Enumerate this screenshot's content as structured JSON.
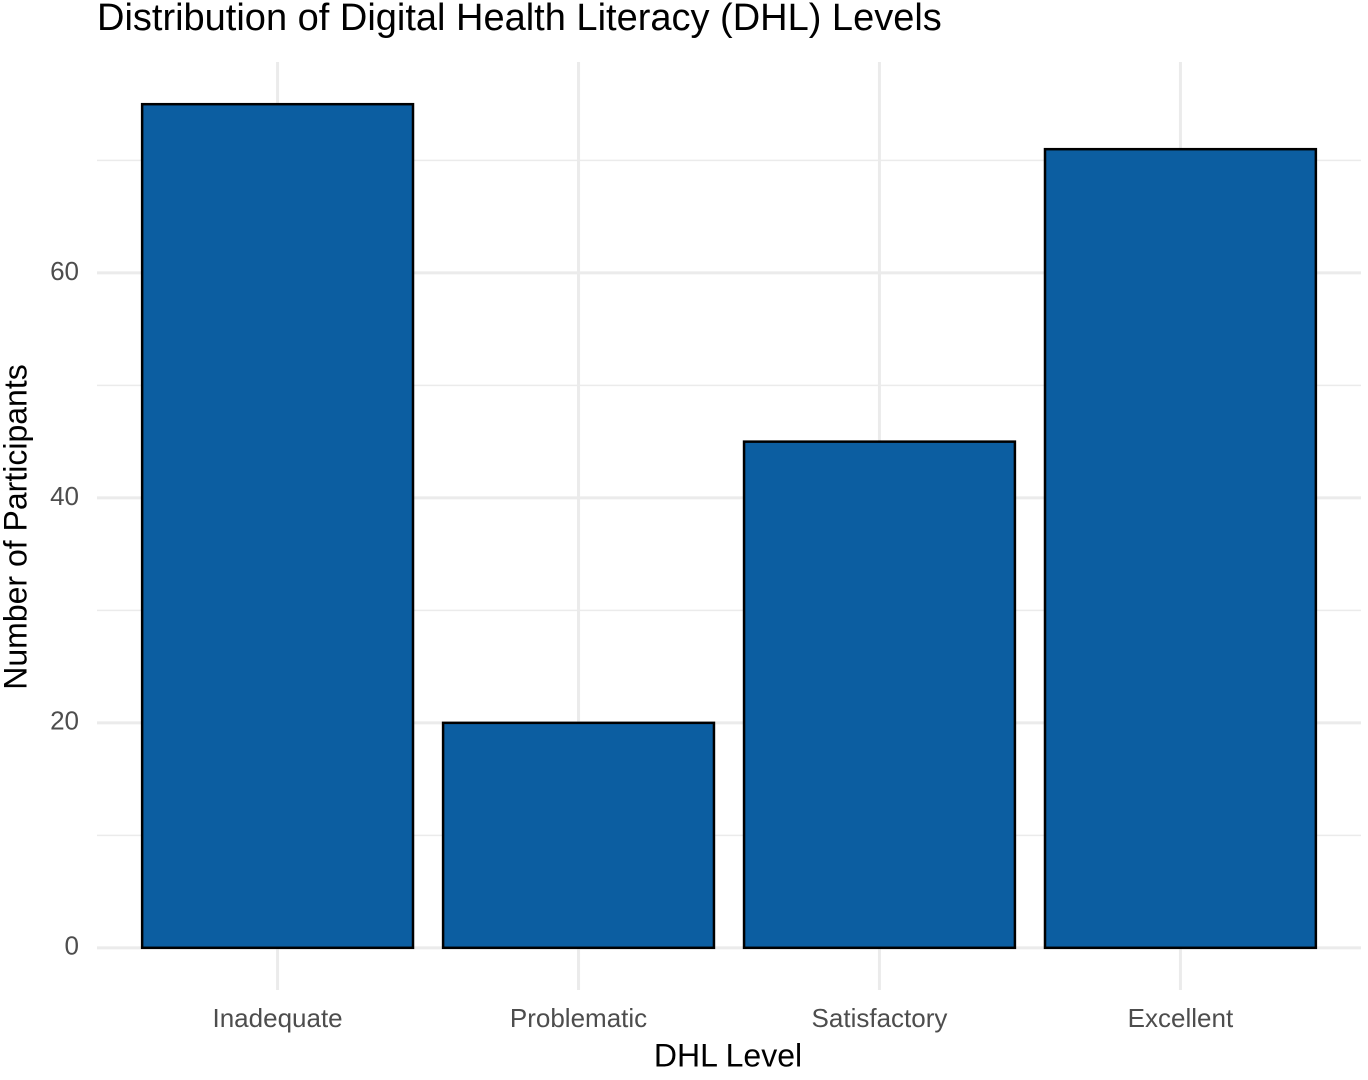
{
  "chart_data": {
    "type": "bar",
    "title": "Distribution of Digital Health Literacy (DHL) Levels",
    "x_label": "DHL Level",
    "y_label": "Number of Participants",
    "categories": [
      "Inadequate",
      "Problematic",
      "Satisfactory",
      "Excellent"
    ],
    "values": [
      75,
      20,
      45,
      71
    ],
    "color": "#0c5ea1",
    "edge_color": "#000000",
    "ylim": [
      -3.75,
      78.75
    ],
    "yticks": [
      0,
      20,
      40,
      60
    ],
    "minor_yticks": [
      10,
      30,
      50,
      70
    ],
    "grid": true
  }
}
